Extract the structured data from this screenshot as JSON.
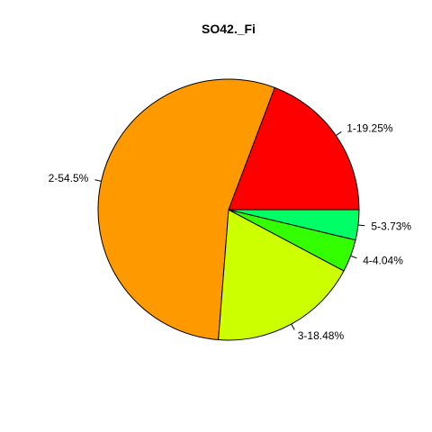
{
  "chart_data": {
    "type": "pie",
    "title": "SO42._Fi",
    "direction": "counter-clockwise",
    "start_angle_degrees": 0,
    "slices": [
      {
        "label": "1-19.25%",
        "value": 19.25,
        "color": "#FF0000"
      },
      {
        "label": "2-54.5%",
        "value": 54.5,
        "color": "#FF9900"
      },
      {
        "label": "3-18.48%",
        "value": 18.48,
        "color": "#CCFF00"
      },
      {
        "label": "4-4.04%",
        "value": 4.04,
        "color": "#33FF00"
      },
      {
        "label": "5-3.73%",
        "value": 3.73,
        "color": "#00FF66"
      }
    ]
  }
}
